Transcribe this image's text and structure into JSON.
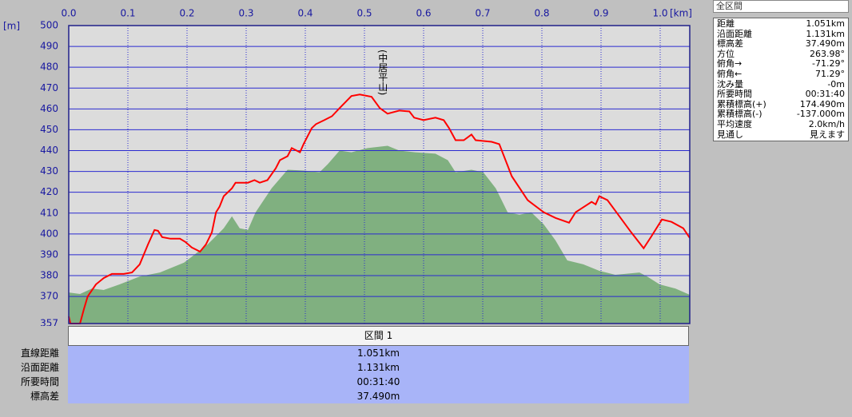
{
  "chart_data": {
    "type": "line",
    "x_unit": "[km]",
    "y_unit": "[m]",
    "xlim": [
      0,
      1.05
    ],
    "xticks": [
      {
        "value": 0,
        "label": "0.0"
      },
      0.1,
      0.2,
      0.3,
      0.4,
      0.5,
      0.6,
      0.7,
      0.8,
      0.9,
      {
        "value": 1,
        "label": "1.0"
      }
    ],
    "ylim": [
      357,
      500
    ],
    "yticks": [
      357,
      370,
      380,
      390,
      400,
      410,
      420,
      430,
      440,
      450,
      460,
      470,
      480,
      490,
      500
    ],
    "grid": true,
    "series": [
      {
        "style": "area",
        "color": "#80b080",
        "x": [
          0.0,
          0.019,
          0.039,
          0.059,
          0.086,
          0.12,
          0.154,
          0.195,
          0.235,
          0.262,
          0.276,
          0.289,
          0.303,
          0.316,
          0.343,
          0.37,
          0.397,
          0.424,
          0.438,
          0.458,
          0.478,
          0.505,
          0.539,
          0.559,
          0.586,
          0.62,
          0.641,
          0.654,
          0.681,
          0.701,
          0.722,
          0.742,
          0.762,
          0.782,
          0.803,
          0.823,
          0.843,
          0.87,
          0.897,
          0.924,
          0.965,
          0.978,
          0.999,
          1.026,
          1.05
        ],
        "values": [
          371.9,
          371.2,
          373.8,
          373.1,
          375.8,
          379.6,
          381.5,
          386.2,
          395.0,
          402.7,
          408.5,
          402.7,
          401.9,
          410.4,
          421.9,
          430.8,
          430.4,
          429.6,
          433.5,
          440.0,
          439.2,
          441.2,
          442.3,
          440.0,
          439.2,
          438.5,
          435.4,
          429.6,
          430.8,
          429.6,
          421.9,
          410.4,
          409.2,
          410.4,
          404.6,
          396.9,
          387.3,
          385.4,
          382.3,
          380.4,
          381.5,
          379.6,
          375.8,
          373.8,
          370.8
        ]
      },
      {
        "style": "line",
        "color": "#ff0000",
        "x": [
          0.0,
          0.003,
          0.019,
          0.026,
          0.032,
          0.046,
          0.059,
          0.073,
          0.093,
          0.107,
          0.12,
          0.134,
          0.145,
          0.151,
          0.158,
          0.172,
          0.188,
          0.197,
          0.208,
          0.222,
          0.232,
          0.242,
          0.249,
          0.255,
          0.262,
          0.276,
          0.282,
          0.303,
          0.314,
          0.323,
          0.336,
          0.35,
          0.357,
          0.37,
          0.377,
          0.391,
          0.397,
          0.411,
          0.418,
          0.432,
          0.445,
          0.458,
          0.478,
          0.492,
          0.512,
          0.526,
          0.539,
          0.559,
          0.576,
          0.584,
          0.6,
          0.62,
          0.634,
          0.643,
          0.654,
          0.668,
          0.681,
          0.688,
          0.715,
          0.728,
          0.749,
          0.776,
          0.803,
          0.823,
          0.846,
          0.857,
          0.884,
          0.891,
          0.897,
          0.911,
          0.931,
          0.951,
          0.972,
          0.985,
          1.003,
          1.019,
          1.039,
          1.05
        ],
        "values": [
          360.4,
          357,
          357,
          364.2,
          370.0,
          375.8,
          378.8,
          380.8,
          380.8,
          381.5,
          385.4,
          395.0,
          401.9,
          401.5,
          398.5,
          397.7,
          397.7,
          396.2,
          393.5,
          391.5,
          395.0,
          400.8,
          410.4,
          413.1,
          418.1,
          421.9,
          424.6,
          424.6,
          425.8,
          424.6,
          425.8,
          431.5,
          435.4,
          437.3,
          441.2,
          439.2,
          443.1,
          450.8,
          452.7,
          454.6,
          456.5,
          460.4,
          466.2,
          466.9,
          465.8,
          460.4,
          457.7,
          459.2,
          458.8,
          455.8,
          454.6,
          455.8,
          454.6,
          450.8,
          445.0,
          445.0,
          447.7,
          445.0,
          444.2,
          443.1,
          427.7,
          416.2,
          410.4,
          407.7,
          405.4,
          410.4,
          415.4,
          414.2,
          418.1,
          416.2,
          408.5,
          400.8,
          393.1,
          398.8,
          406.9,
          405.8,
          402.7,
          398.1
        ]
      }
    ],
    "annotations": [
      {
        "text": "(中居平山)",
        "x": 0.53
      }
    ]
  },
  "stats": {
    "title": "全区間",
    "rows": [
      [
        "距離",
        "1.051km"
      ],
      [
        "沿面距離",
        "1.131km"
      ],
      [
        "標高差",
        "37.490m"
      ],
      [
        "方位",
        "263.98°"
      ],
      [
        "俯角→",
        "-71.29°"
      ],
      [
        "俯角←",
        "71.29°"
      ],
      [
        "沈み量",
        "-0m"
      ],
      [
        "所要時間",
        "00:31:40"
      ],
      [
        "累積標高(+)",
        "174.490m"
      ],
      [
        "累積標高(-)",
        "-137.000m"
      ],
      [
        "平均速度",
        "2.0km/h"
      ],
      [
        "見通し",
        "見えます"
      ]
    ]
  },
  "section": {
    "header": "区間 1",
    "rows": [
      [
        "直線距離",
        "1.051km"
      ],
      [
        "沿面距離",
        "1.131km"
      ],
      [
        "所要時間",
        "00:31:40"
      ],
      [
        "標高差",
        "37.490m"
      ]
    ]
  }
}
